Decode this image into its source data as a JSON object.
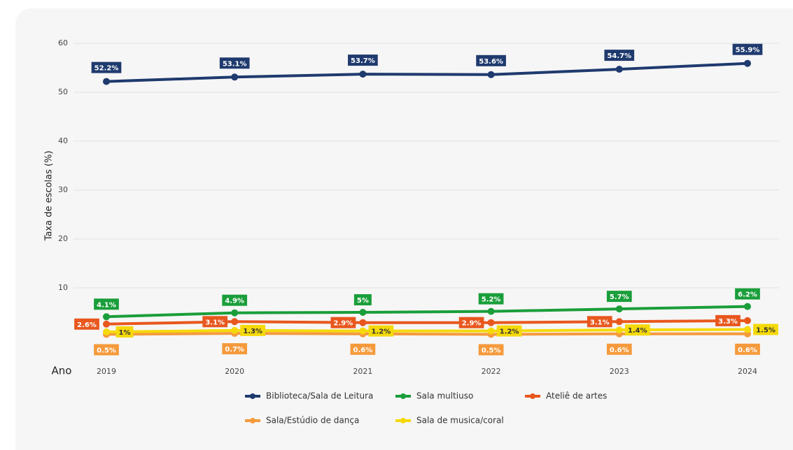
{
  "chart_data": {
    "type": "line",
    "y_label": "Taxa de escolas (%)",
    "x_label": "Ano",
    "categories": [
      "2019",
      "2020",
      "2021",
      "2022",
      "2023",
      "2024"
    ],
    "ylim": [
      0,
      60
    ],
    "yticks": [
      10,
      20,
      30,
      40,
      50,
      60
    ],
    "grid": true,
    "legend": "bottom",
    "series": [
      {
        "name": "Biblioteca/Sala de Leitura",
        "color": "#1f3a6e",
        "values": [
          52.2,
          53.1,
          53.7,
          53.6,
          54.7,
          55.9
        ],
        "value_labels": [
          "52.2%",
          "53.1%",
          "53.7%",
          "53.6%",
          "54.7%",
          "55.9%"
        ]
      },
      {
        "name": "Sala multiuso",
        "color": "#1a9e3a",
        "values": [
          4.1,
          4.9,
          5,
          5.2,
          5.7,
          6.2
        ],
        "value_labels": [
          "4.1%",
          "4.9%",
          "5%",
          "5.2%",
          "5.7%",
          "6.2%"
        ]
      },
      {
        "name": "Ateliê de artes",
        "color": "#e8571e",
        "values": [
          2.6,
          3.1,
          2.9,
          2.9,
          3.1,
          3.3
        ],
        "value_labels": [
          "2.6%",
          "3.1%",
          "2.9%",
          "2.9%",
          "3.1%",
          "3.3%"
        ]
      },
      {
        "name": "Sala/Estúdio de dança",
        "color": "#f59a3c",
        "values": [
          0.5,
          0.7,
          0.6,
          0.5,
          0.6,
          0.6
        ],
        "value_labels": [
          "0.5%",
          "0.7%",
          "0.6%",
          "0.5%",
          "0.6%",
          "0.6%"
        ]
      },
      {
        "name": "Sala de musica/coral",
        "color": "#f5d90a",
        "values": [
          1,
          1.3,
          1.2,
          1.2,
          1.4,
          1.5
        ],
        "value_labels": [
          "1%",
          "1.3%",
          "1.2%",
          "1.2%",
          "1.4%",
          "1.5%"
        ]
      }
    ]
  }
}
